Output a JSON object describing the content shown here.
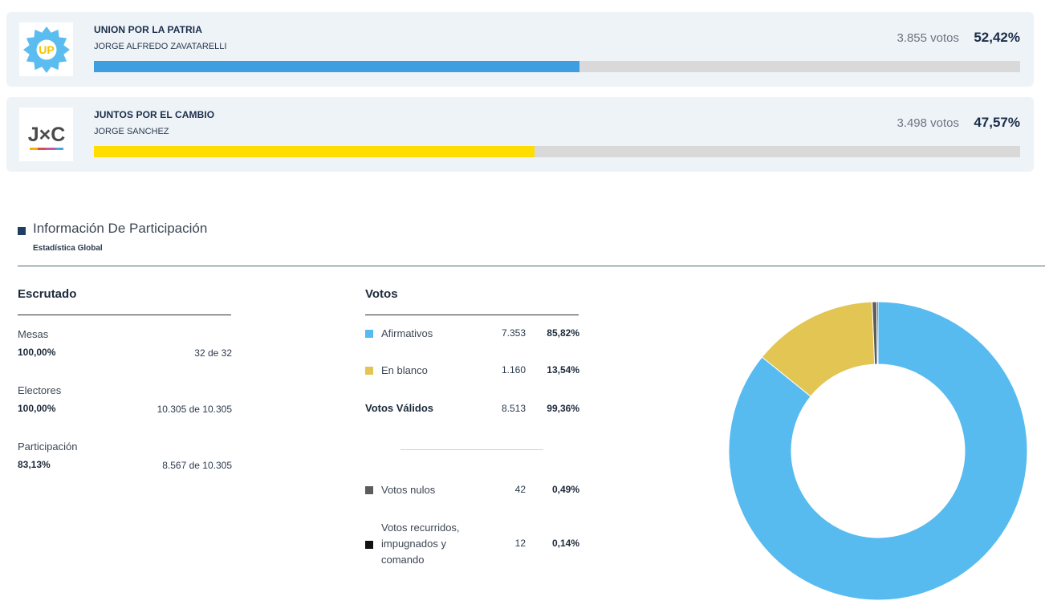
{
  "parties": [
    {
      "name": "UNION POR LA PATRIA",
      "candidate": "JORGE ALFREDO ZAVATARELLI",
      "votes": "3.855 votos",
      "pct_label": "52,42%",
      "share": 52.42,
      "bar_color": "#3d9ee0",
      "logo_text": "UP",
      "logo_icon": "up-star-badge-icon"
    },
    {
      "name": "JUNTOS POR EL CAMBIO",
      "candidate": "JORGE SANCHEZ",
      "votes": "3.498 votos",
      "pct_label": "47,57%",
      "share": 47.57,
      "bar_color": "#ffdd00",
      "logo_text": "J×C",
      "logo_icon": "jxc-wordmark-icon"
    }
  ],
  "section": {
    "title": "Información De Participación",
    "subtitle": "Estadística Global"
  },
  "escrutado": {
    "heading": "Escrutado",
    "rows": [
      {
        "label": "Mesas",
        "pct": "100,00%",
        "value": "32 de 32"
      },
      {
        "label": "Electores",
        "pct": "100,00%",
        "value": "10.305 de 10.305"
      },
      {
        "label": "Participación",
        "pct": "83,13%",
        "value": "8.567 de 10.305"
      }
    ]
  },
  "votos": {
    "heading": "Votos",
    "rows": [
      {
        "label": "Afirmativos",
        "num": "7.353",
        "pct": "85,82%",
        "color": "#57bbef"
      },
      {
        "label": "En blanco",
        "num": "1.160",
        "pct": "13,54%",
        "color": "#e2c552"
      },
      {
        "label": "Votos Válidos",
        "num": "8.513",
        "pct": "99,36%"
      },
      {
        "label": "Votos nulos",
        "num": "42",
        "pct": "0,49%",
        "color": "#5c5c5c"
      },
      {
        "label_lines": [
          "Votos recurridos,",
          "impugnados y",
          "comando"
        ],
        "num": "12",
        "pct": "0,14%",
        "color": "#111111"
      }
    ]
  },
  "chart_data": {
    "type": "pie",
    "donut": true,
    "categories": [
      "Afirmativos",
      "En blanco",
      "Votos nulos",
      "Votos recurridos, impugnados y comando"
    ],
    "values": [
      7353,
      1160,
      42,
      12
    ],
    "colors": [
      "#57bbef",
      "#e2c552",
      "#5c5c5c",
      "#111111"
    ]
  }
}
